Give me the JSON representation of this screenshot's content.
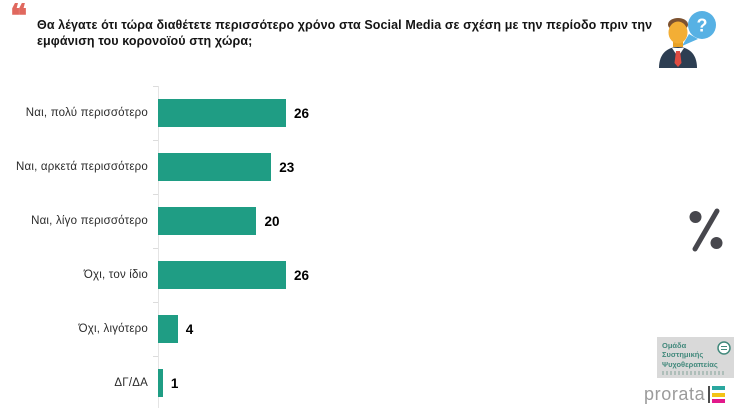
{
  "title": {
    "quote_mark": "❝",
    "text": "Θα λέγατε ότι τώρα διαθέτετε περισσότερο χρόνο στα Social Media σε σχέση με την περίοδο πριν την εμφάνιση του κορονοϊού στη χώρα;"
  },
  "chart_data": {
    "type": "bar",
    "orientation": "horizontal",
    "categories": [
      "Ναι, πολύ περισσότερο",
      "Ναι, αρκετά περισσότερο",
      "Ναι, λίγο περισσότερο",
      "Όχι, τον ίδιο",
      "Όχι, λιγότερο",
      "ΔΓ/ΔΑ"
    ],
    "values": [
      26,
      23,
      20,
      26,
      4,
      1
    ],
    "value_labels_shown": true,
    "unit": "percent",
    "xlim": [
      0,
      30
    ],
    "gridlines": false,
    "bar_color": "#1f9d84"
  },
  "side": {
    "percent_symbol": "%"
  },
  "avatar": {
    "question_mark": "?"
  },
  "logos": {
    "psychotherapy": {
      "line1": "Ομάδα",
      "line2": "Συστημικής",
      "line3": "Ψυχοθεραπείας"
    },
    "prorata": {
      "text": "prorata"
    }
  },
  "colors": {
    "bar": "#1f9d84",
    "quote": "#e0685e",
    "percent": "#47474d",
    "bubble": "#57b1e4",
    "suit": "#2d3e52",
    "tie": "#df4b41",
    "face": "#f3ae35",
    "psy_text": "#42897c",
    "prorata_text": "#9b9b9b",
    "flag_teal": "#2aa79f",
    "flag_yellow": "#f3c317",
    "flag_magenta": "#e2198b"
  }
}
